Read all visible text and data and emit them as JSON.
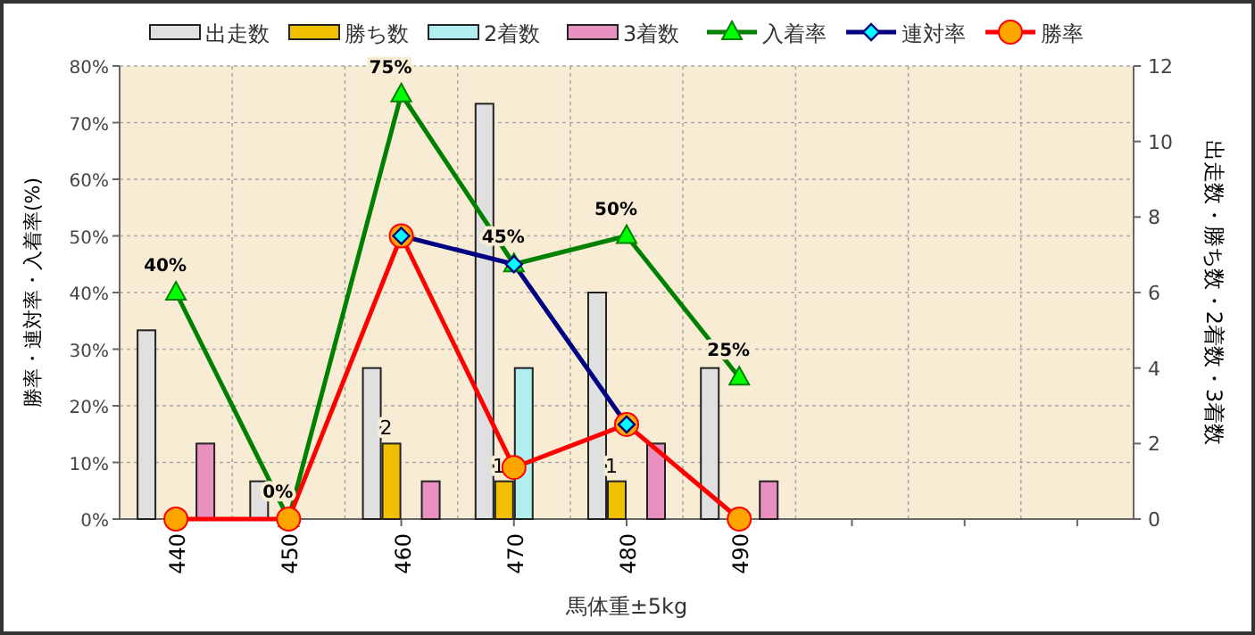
{
  "chart_data": {
    "type": "bar",
    "xlabel": "馬体重±5kg",
    "ylabel": "勝率・連対率・入着率(%)",
    "y2label": "出走数・勝ち数・2着数・3着数",
    "categories": [
      "440",
      "450",
      "460",
      "470",
      "480",
      "490",
      null,
      null,
      null
    ],
    "ylim": [
      0,
      80
    ],
    "yticks": [
      {
        "value": 0,
        "label": "0%"
      },
      {
        "value": 10,
        "label": "10%"
      },
      {
        "value": 20,
        "label": "20%"
      },
      {
        "value": 30,
        "label": "30%"
      },
      {
        "value": 40,
        "label": "40%"
      },
      {
        "value": 50,
        "label": "50%"
      },
      {
        "value": 60,
        "label": "60%"
      },
      {
        "value": 70,
        "label": "70%"
      },
      {
        "value": 80,
        "label": "80%"
      }
    ],
    "y2lim": [
      0,
      12
    ],
    "y2ticks": [
      0,
      2,
      4,
      6,
      8,
      10,
      12
    ],
    "grid": true,
    "legend": "top",
    "series": [
      {
        "name": "出走数",
        "type": "bar",
        "axis": "y2",
        "color": "#e0e0e0",
        "values": [
          5,
          1,
          4,
          11,
          6,
          4,
          null,
          null,
          null
        ]
      },
      {
        "name": "勝ち数",
        "type": "bar",
        "axis": "y2",
        "color": "#f0c000",
        "values": [
          0,
          0,
          2,
          1,
          1,
          0,
          null,
          null,
          null
        ],
        "value_labels": [
          null,
          null,
          "2",
          "1",
          "1",
          null,
          null,
          null,
          null
        ]
      },
      {
        "name": "2着数",
        "type": "bar",
        "axis": "y2",
        "color": "#b0eef0",
        "values": [
          0,
          0,
          0,
          4,
          0,
          0,
          null,
          null,
          null
        ]
      },
      {
        "name": "3着数",
        "type": "bar",
        "axis": "y2",
        "color": "#e890c0",
        "values": [
          2,
          0,
          1,
          0,
          2,
          1,
          null,
          null,
          null
        ]
      },
      {
        "name": "入着率",
        "type": "line",
        "axis": "y",
        "color": "#008000",
        "marker": "triangle",
        "values": [
          40,
          0,
          75,
          45,
          50,
          25,
          null,
          null,
          null
        ],
        "value_labels": [
          "40%",
          "0%",
          "75%",
          "45%",
          "50%",
          "25%",
          null,
          null,
          null
        ]
      },
      {
        "name": "連対率",
        "type": "line",
        "axis": "y",
        "color": "#000080",
        "marker": "diamond",
        "values": [
          null,
          null,
          50,
          45,
          16.7,
          null,
          null,
          null,
          null
        ]
      },
      {
        "name": "勝率",
        "type": "line",
        "axis": "y",
        "color": "#ff0000",
        "marker": "circle",
        "values": [
          0,
          0,
          50,
          9.1,
          16.7,
          0,
          null,
          null,
          null
        ]
      }
    ]
  }
}
